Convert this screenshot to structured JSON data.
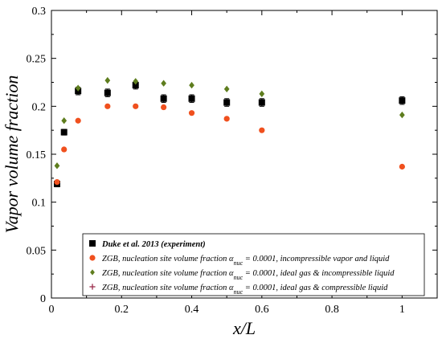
{
  "chart_data": {
    "type": "scatter",
    "xlabel": "x/L",
    "ylabel": "Vapor volume fraction",
    "xlim": [
      0,
      1.1
    ],
    "ylim": [
      0,
      0.3
    ],
    "x_ticks": [
      "0",
      "0.2",
      "0.4",
      "0.6",
      "0.8",
      "1"
    ],
    "y_ticks": [
      "0",
      "0.05",
      "0.1",
      "0.15",
      "0.2",
      "0.25",
      "0.3"
    ],
    "x_tick_values": [
      0,
      0.2,
      0.4,
      0.6,
      0.8,
      1.0
    ],
    "y_tick_values": [
      0,
      0.05,
      0.1,
      0.15,
      0.2,
      0.25,
      0.3
    ],
    "legend_position": "bottom",
    "grid": false,
    "series": [
      {
        "name": "Duke et al. 2013 (experiment)",
        "legend_parts": [
          {
            "t": "Duke et al. 2013 (experiment)"
          }
        ],
        "marker": "square",
        "color": "#000000",
        "error_bars": true,
        "points": [
          {
            "x": 0.016,
            "y": 0.119,
            "err": 0.003
          },
          {
            "x": 0.036,
            "y": 0.173,
            "err": 0.003
          },
          {
            "x": 0.076,
            "y": 0.216,
            "err": 0.004
          },
          {
            "x": 0.16,
            "y": 0.214,
            "err": 0.004
          },
          {
            "x": 0.24,
            "y": 0.222,
            "err": 0.004
          },
          {
            "x": 0.32,
            "y": 0.208,
            "err": 0.004
          },
          {
            "x": 0.4,
            "y": 0.208,
            "err": 0.004
          },
          {
            "x": 0.5,
            "y": 0.204,
            "err": 0.004
          },
          {
            "x": 0.6,
            "y": 0.204,
            "err": 0.004
          },
          {
            "x": 1.0,
            "y": 0.206,
            "err": 0.004
          }
        ]
      },
      {
        "name": "ZGB, nucleation site volume fraction αnuc = 0.0001, incompressible vapor and liquid",
        "legend_parts": [
          {
            "t": "ZGB, nucleation site volume fraction α"
          },
          {
            "t": "nuc",
            "sub": true
          },
          {
            "t": " = 0.0001, incompressible vapor and liquid"
          }
        ],
        "marker": "circle",
        "color": "#f0501e",
        "points": [
          {
            "x": 0.016,
            "y": 0.121
          },
          {
            "x": 0.036,
            "y": 0.155
          },
          {
            "x": 0.076,
            "y": 0.185
          },
          {
            "x": 0.16,
            "y": 0.2
          },
          {
            "x": 0.24,
            "y": 0.2
          },
          {
            "x": 0.32,
            "y": 0.199
          },
          {
            "x": 0.4,
            "y": 0.193
          },
          {
            "x": 0.5,
            "y": 0.187
          },
          {
            "x": 0.6,
            "y": 0.175
          },
          {
            "x": 1.0,
            "y": 0.137
          }
        ]
      },
      {
        "name": "ZGB, nucleation site volume fraction αnuc = 0.0001, ideal gas & incompressible liquid",
        "legend_parts": [
          {
            "t": "ZGB, nucleation site volume fraction α"
          },
          {
            "t": "nuc",
            "sub": true
          },
          {
            "t": " = 0.0001, ideal gas & incompressible liquid"
          }
        ],
        "marker": "diamond",
        "color": "#5e7d1e",
        "points": [
          {
            "x": 0.016,
            "y": 0.138
          },
          {
            "x": 0.036,
            "y": 0.185
          },
          {
            "x": 0.076,
            "y": 0.219
          },
          {
            "x": 0.16,
            "y": 0.227
          },
          {
            "x": 0.24,
            "y": 0.226
          },
          {
            "x": 0.32,
            "y": 0.224
          },
          {
            "x": 0.4,
            "y": 0.222
          },
          {
            "x": 0.5,
            "y": 0.218
          },
          {
            "x": 0.6,
            "y": 0.213
          },
          {
            "x": 1.0,
            "y": 0.191
          }
        ]
      },
      {
        "name": "ZGB, nucleation site volume fraction αnuc = 0.0001, ideal gas & compressible liquid",
        "legend_parts": [
          {
            "t": "ZGB, nucleation site volume fraction α"
          },
          {
            "t": "nuc",
            "sub": true
          },
          {
            "t": " = 0.0001, ideal gas & compressible liquid"
          }
        ],
        "marker": "plus",
        "color": "#9b2d4b",
        "points": []
      }
    ]
  }
}
